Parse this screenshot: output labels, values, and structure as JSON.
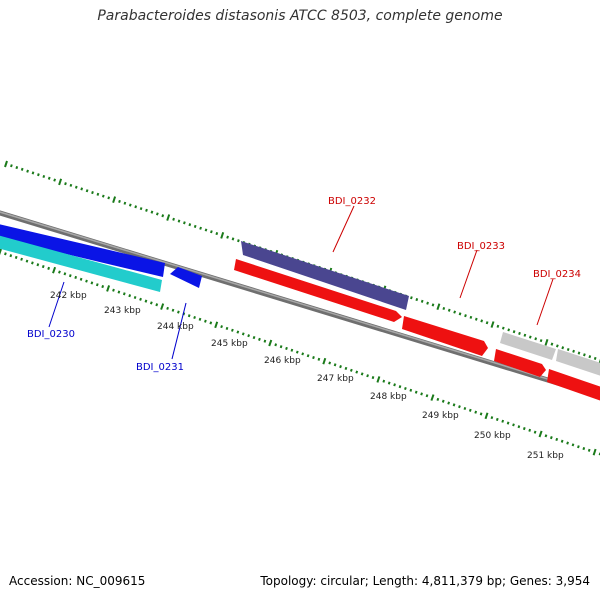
{
  "title": "Parabacteroides distasonis ATCC 8503, complete genome",
  "footer": {
    "accession": "Accession: NC_009615",
    "summary": "Topology: circular; Length: 4,811,379 bp; Genes: 3,954"
  },
  "colors": {
    "background": "#ffffff",
    "backbone": "#8a8a8a",
    "tick_marks": "#1a7a1a",
    "forward_label": "#cc0000",
    "reverse_label": "#0000cc",
    "gene_blue": "#0a14e6",
    "gene_cyan": "#22cccc",
    "gene_purple": "#4a4690",
    "gene_red": "#ee1111",
    "gene_gray": "#c8c8c8"
  },
  "scale": {
    "unit": "kbp",
    "labels": [
      "242 kbp",
      "243 kbp",
      "244 kbp",
      "245 kbp",
      "246 kbp",
      "247 kbp",
      "248 kbp",
      "249 kbp",
      "250 kbp",
      "251 kbp"
    ]
  },
  "genes": [
    {
      "id": "BDI_0230",
      "label": "BDI_0230",
      "strand": "reverse",
      "color": "#0a14e6"
    },
    {
      "id": "BDI_0231",
      "label": "BDI_0231",
      "strand": "reverse",
      "color": "#0a14e6"
    },
    {
      "id": "BDI_0232",
      "label": "BDI_0232",
      "strand": "forward",
      "color": "#4a4690"
    },
    {
      "id": "BDI_0233",
      "label": "BDI_0233",
      "strand": "forward",
      "color": "#ee1111"
    },
    {
      "id": "BDI_0234",
      "label": "BDI_0234",
      "strand": "forward",
      "color": "#ee1111"
    }
  ]
}
